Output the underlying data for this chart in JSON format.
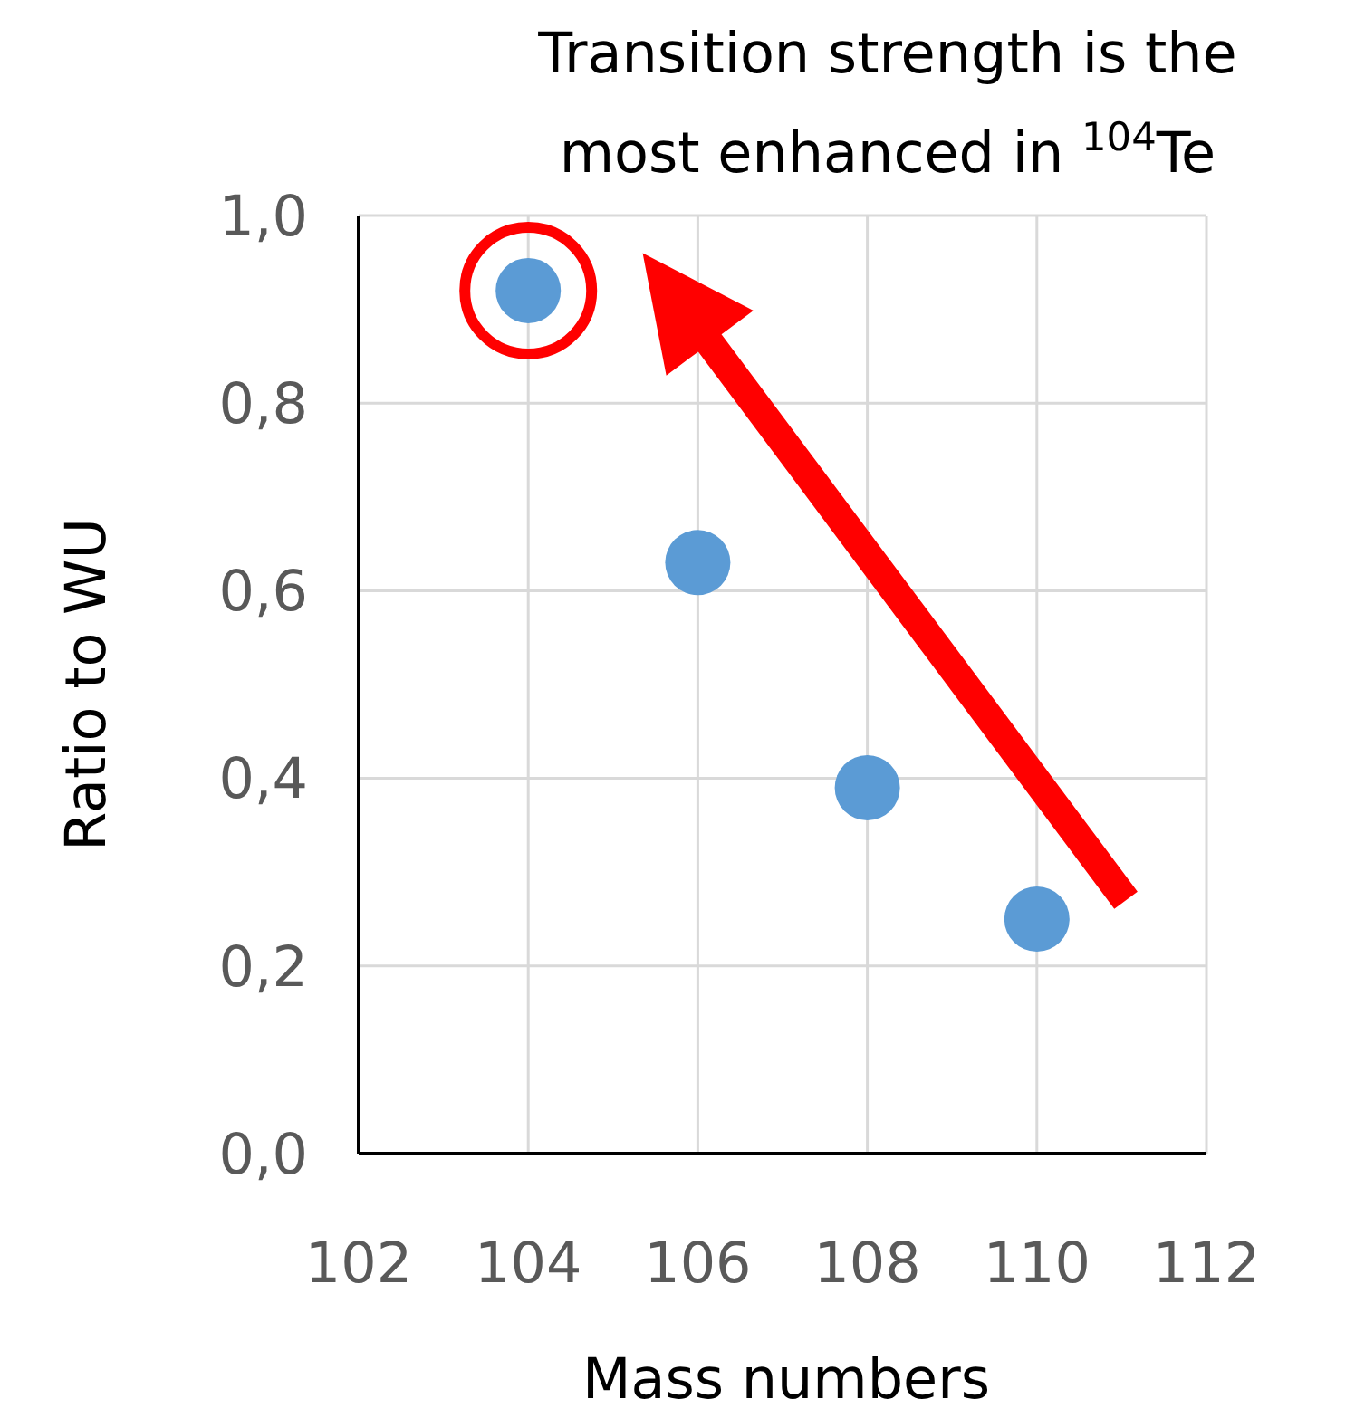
{
  "chart_data": {
    "type": "scatter",
    "title": "Transition strength is the most enhanced in $^{104}$Te",
    "xlabel": "Mass numbers",
    "ylabel": "Ratio to WU",
    "x": [
      104,
      106,
      108,
      110
    ],
    "series": [
      {
        "color": "#5b9bd5",
        "values": [
          0.92,
          0.63,
          0.39,
          0.25
        ]
      }
    ],
    "xlim": [
      102,
      112
    ],
    "xticks": [
      102,
      104,
      106,
      108,
      110,
      112
    ],
    "ylim": [
      0,
      1
    ],
    "yticks": [
      {
        "value": 0,
        "label": "0,0"
      },
      {
        "value": 0.2,
        "label": "0,2"
      },
      {
        "value": 0.4,
        "label": "0,4"
      },
      {
        "value": 0.6,
        "label": "0,6"
      },
      {
        "value": 0.8,
        "label": "0,8"
      },
      {
        "value": 1,
        "label": "1,0"
      }
    ],
    "grid": true,
    "marker": "circle"
  }
}
